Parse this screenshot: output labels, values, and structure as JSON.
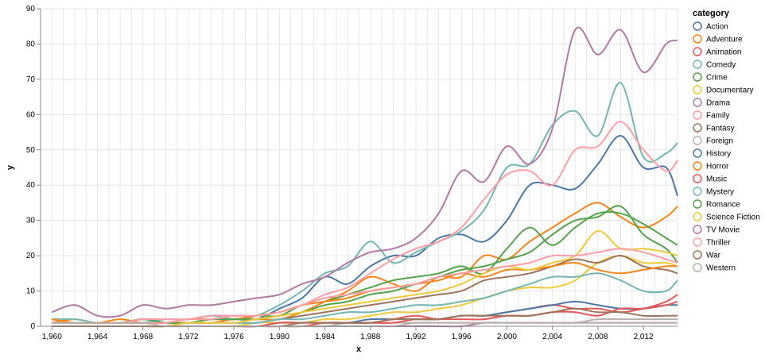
{
  "chart_data": {
    "type": "line",
    "xlabel": "x",
    "ylabel": "y",
    "xlim": [
      1959,
      2015
    ],
    "ylim": [
      0,
      90
    ],
    "x_ticks": [
      "1,960",
      "1,964",
      "1,968",
      "1,972",
      "1,976",
      "1,980",
      "1,984",
      "1,988",
      "1,992",
      "1,996",
      "2,000",
      "2,004",
      "2,008",
      "2,012"
    ],
    "y_ticks": [
      "0",
      "10",
      "20",
      "30",
      "40",
      "50",
      "60",
      "70",
      "80",
      "90"
    ],
    "grid": true,
    "legend": {
      "title": "category",
      "placement": "right"
    },
    "x": [
      1960,
      1962,
      1964,
      1966,
      1968,
      1970,
      1972,
      1974,
      1976,
      1978,
      1980,
      1982,
      1984,
      1986,
      1988,
      1990,
      1992,
      1994,
      1996,
      1998,
      2000,
      2002,
      2004,
      2006,
      2008,
      2010,
      2012,
      2014,
      2015
    ],
    "series": [
      {
        "name": "Action",
        "color": "#4c78a8",
        "values": [
          1,
          1,
          1,
          1,
          2,
          1,
          1,
          2,
          2,
          2,
          5,
          8,
          14,
          12,
          17,
          20,
          20,
          25,
          26,
          24,
          30,
          40,
          40,
          39,
          46,
          54,
          45,
          45,
          37
        ]
      },
      {
        "name": "Adventure",
        "color": "#f58518",
        "values": [
          1,
          2,
          1,
          2,
          1,
          1,
          1,
          1,
          2,
          2,
          2,
          4,
          7,
          10,
          14,
          12,
          10,
          14,
          14,
          20,
          19,
          24,
          28,
          32,
          35,
          31,
          28,
          31,
          34
        ]
      },
      {
        "name": "Animation",
        "color": "#e45756",
        "values": [
          0,
          0,
          0,
          0,
          0,
          0,
          0,
          0,
          0,
          0,
          0,
          0,
          1,
          1,
          1,
          2,
          3,
          2,
          3,
          3,
          4,
          5,
          6,
          5,
          5,
          4,
          5,
          7,
          9
        ]
      },
      {
        "name": "Comedy",
        "color": "#72b7b2",
        "values": [
          2,
          2,
          1,
          1,
          1,
          2,
          2,
          3,
          2,
          3,
          6,
          10,
          15,
          17,
          24,
          18,
          21,
          24,
          27,
          33,
          45,
          46,
          57,
          61,
          54,
          69,
          48,
          49,
          52
        ]
      },
      {
        "name": "Crime",
        "color": "#54a24b",
        "values": [
          1,
          1,
          1,
          1,
          2,
          1,
          1,
          2,
          2,
          3,
          3,
          6,
          7,
          9,
          11,
          13,
          14,
          15,
          17,
          15,
          22,
          28,
          23,
          28,
          32,
          32,
          29,
          25,
          23
        ]
      },
      {
        "name": "Documentary",
        "color": "#eeca3b",
        "values": [
          0,
          0,
          0,
          0,
          0,
          0,
          0,
          0,
          0,
          1,
          1,
          1,
          2,
          2,
          3,
          4,
          4,
          5,
          6,
          8,
          10,
          11,
          11,
          13,
          18,
          20,
          18,
          18,
          17
        ]
      },
      {
        "name": "Drama",
        "color": "#b279a2",
        "values": [
          4,
          6,
          3,
          3,
          6,
          5,
          6,
          6,
          7,
          8,
          9,
          12,
          14,
          18,
          21,
          22,
          25,
          32,
          44,
          41,
          51,
          46,
          56,
          84,
          77,
          84,
          72,
          80,
          81
        ]
      },
      {
        "name": "Family",
        "color": "#ff9da6",
        "values": [
          1,
          1,
          1,
          1,
          2,
          2,
          2,
          3,
          3,
          3,
          4,
          6,
          9,
          11,
          15,
          19,
          22,
          24,
          28,
          36,
          43,
          44,
          40,
          50,
          51,
          58,
          50,
          44,
          47
        ]
      },
      {
        "name": "Fantasy",
        "color": "#9d755d",
        "values": [
          0,
          0,
          0,
          0,
          0,
          0,
          1,
          1,
          1,
          1,
          2,
          3,
          4,
          5,
          6,
          7,
          8,
          9,
          10,
          13,
          14,
          15,
          17,
          19,
          18,
          20,
          17,
          16,
          15
        ]
      },
      {
        "name": "Foreign",
        "color": "#bab0ac",
        "values": [
          0,
          0,
          0,
          0,
          0,
          0,
          0,
          0,
          0,
          0,
          0,
          0,
          0,
          1,
          1,
          1,
          1,
          1,
          1,
          1,
          1,
          1,
          1,
          1,
          2,
          2,
          2,
          2,
          2
        ]
      },
      {
        "name": "History",
        "color": "#4c78a8",
        "values": [
          0,
          0,
          0,
          0,
          0,
          0,
          0,
          0,
          0,
          0,
          1,
          1,
          1,
          1,
          2,
          2,
          2,
          2,
          3,
          3,
          4,
          5,
          6,
          7,
          6,
          5,
          5,
          6,
          6
        ]
      },
      {
        "name": "Horror",
        "color": "#f58518",
        "values": [
          2,
          1,
          1,
          1,
          1,
          1,
          2,
          2,
          2,
          3,
          4,
          6,
          7,
          8,
          10,
          11,
          12,
          13,
          15,
          14,
          16,
          16,
          17,
          18,
          16,
          15,
          16,
          17,
          17
        ]
      },
      {
        "name": "Music",
        "color": "#e45756",
        "values": [
          0,
          0,
          0,
          0,
          0,
          0,
          0,
          0,
          0,
          0,
          1,
          1,
          1,
          1,
          1,
          1,
          2,
          2,
          2,
          2,
          3,
          3,
          4,
          4,
          3,
          5,
          5,
          6,
          7
        ]
      },
      {
        "name": "Mystery",
        "color": "#72b7b2",
        "values": [
          0,
          0,
          0,
          0,
          0,
          0,
          1,
          1,
          1,
          1,
          2,
          2,
          3,
          4,
          4,
          5,
          6,
          6,
          7,
          8,
          10,
          12,
          14,
          14,
          15,
          13,
          10,
          10,
          13
        ]
      },
      {
        "name": "Romance",
        "color": "#54a24b",
        "values": [
          1,
          1,
          1,
          1,
          1,
          1,
          2,
          2,
          2,
          2,
          3,
          4,
          6,
          7,
          9,
          10,
          12,
          14,
          16,
          17,
          19,
          21,
          26,
          30,
          31,
          34,
          26,
          22,
          18
        ]
      },
      {
        "name": "Science Fiction",
        "color": "#eeca3b",
        "values": [
          0,
          0,
          0,
          0,
          0,
          0,
          1,
          1,
          1,
          2,
          3,
          4,
          5,
          6,
          7,
          8,
          9,
          10,
          12,
          15,
          17,
          16,
          18,
          20,
          27,
          22,
          22,
          21,
          20
        ]
      },
      {
        "name": "TV Movie",
        "color": "#b279a2",
        "values": [
          0,
          0,
          0,
          0,
          0,
          0,
          0,
          0,
          0,
          0,
          0,
          0,
          0,
          0,
          0,
          0,
          0,
          0,
          0,
          1,
          1,
          1,
          1,
          1,
          1,
          1,
          1,
          1,
          1
        ]
      },
      {
        "name": "Thriller",
        "color": "#ff9da6",
        "values": [
          1,
          1,
          1,
          1,
          1,
          1,
          2,
          2,
          3,
          3,
          4,
          6,
          8,
          9,
          10,
          11,
          12,
          14,
          15,
          16,
          17,
          18,
          20,
          20,
          21,
          22,
          21,
          19,
          18
        ]
      },
      {
        "name": "War",
        "color": "#9d755d",
        "values": [
          0,
          0,
          0,
          0,
          0,
          0,
          0,
          0,
          0,
          0,
          0,
          1,
          1,
          1,
          1,
          2,
          2,
          2,
          3,
          3,
          3,
          3,
          4,
          5,
          4,
          4,
          3,
          3,
          3
        ]
      },
      {
        "name": "Western",
        "color": "#bab0ac",
        "values": [
          1,
          1,
          1,
          1,
          1,
          0,
          0,
          0,
          0,
          0,
          0,
          0,
          0,
          0,
          0,
          0,
          1,
          1,
          1,
          1,
          1,
          1,
          1,
          1,
          1,
          1,
          1,
          1,
          1
        ]
      }
    ]
  }
}
